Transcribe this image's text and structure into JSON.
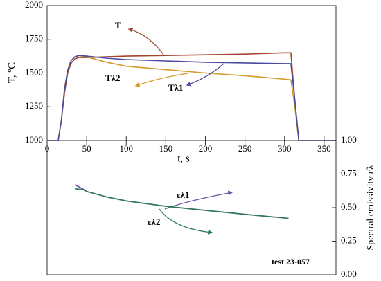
{
  "chart_data": [
    {
      "type": "line",
      "y_label": "T, ºC",
      "x_label": "t, s",
      "x": [
        0,
        14,
        18,
        22,
        26,
        30,
        35,
        40,
        50,
        75,
        100,
        150,
        200,
        250,
        300,
        308,
        313,
        318,
        365
      ],
      "xlim": [
        0,
        365
      ],
      "xticks": [
        0,
        50,
        100,
        150,
        200,
        250,
        300,
        350
      ],
      "ylim": [
        1000,
        2000
      ],
      "yticks": [
        1000,
        1250,
        1500,
        1750,
        2000
      ],
      "series": [
        {
          "name": "T",
          "color": "#a5442e",
          "values": [
            1000,
            1000,
            1150,
            1350,
            1500,
            1570,
            1605,
            1615,
            1615,
            1620,
            1625,
            1630,
            1635,
            1640,
            1650,
            1650,
            1300,
            1000,
            1000
          ]
        },
        {
          "name": "Tλ2",
          "color": "#d49a2a",
          "values": [
            1000,
            1000,
            1150,
            1380,
            1520,
            1590,
            1620,
            1630,
            1620,
            1580,
            1550,
            1525,
            1500,
            1480,
            1455,
            1450,
            1250,
            1000,
            1000
          ]
        },
        {
          "name": "Tλ1",
          "color": "#4a4aa0",
          "values": [
            1000,
            1000,
            1150,
            1380,
            1520,
            1590,
            1620,
            1630,
            1625,
            1610,
            1600,
            1590,
            1580,
            1575,
            1570,
            1570,
            1300,
            1000,
            1000
          ]
        }
      ]
    },
    {
      "type": "line",
      "y2_label": "Spectral emissivity  ελ",
      "annotation": "test 23-057",
      "x": [
        35,
        45,
        50,
        75,
        100,
        150,
        200,
        250,
        305
      ],
      "xlim": [
        0,
        365
      ],
      "y2lim": [
        0,
        1
      ],
      "y2ticks": [
        {
          "value": 0,
          "label": "0.00"
        },
        {
          "value": 0.25,
          "label": "0.25"
        },
        {
          "value": 0.5,
          "label": "0.50"
        },
        {
          "value": 0.75,
          "label": "0.75"
        },
        {
          "value": 1,
          "label": "1.00"
        }
      ],
      "series": [
        {
          "name": "ελ1",
          "color": "#6a50a8",
          "axis": "y2",
          "values": [
            0.67,
            0.64,
            0.62,
            0.58,
            0.55,
            0.51,
            0.48,
            0.45,
            0.42
          ]
        },
        {
          "name": "ελ2",
          "color": "#2e7d52",
          "axis": "y2",
          "values": [
            0.64,
            0.635,
            0.62,
            0.58,
            0.55,
            0.51,
            0.48,
            0.45,
            0.42
          ]
        }
      ]
    }
  ]
}
